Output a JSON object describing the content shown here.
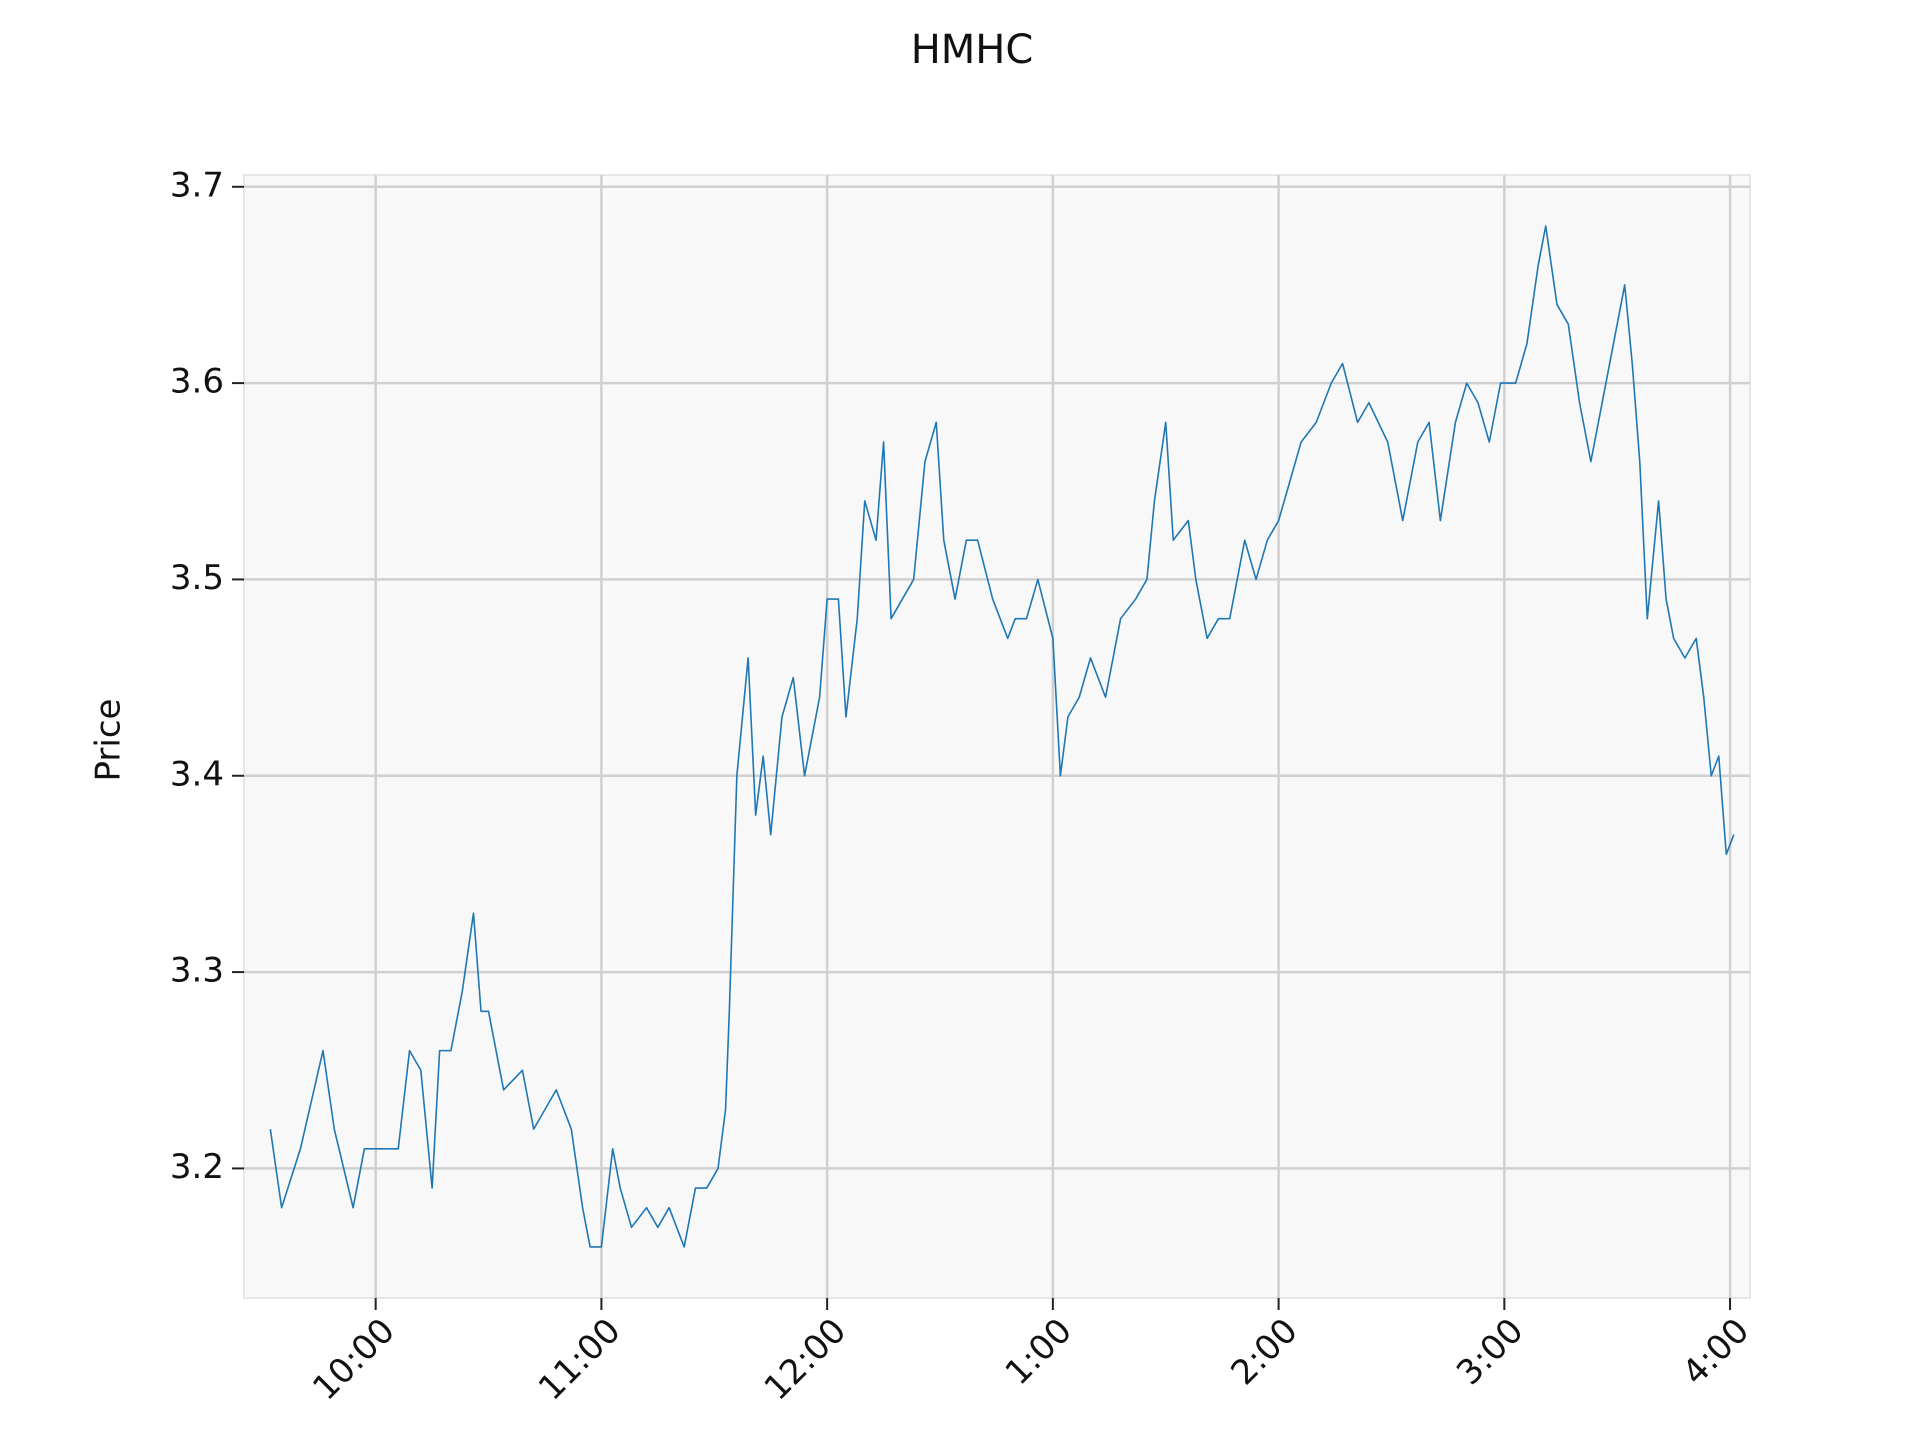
{
  "chart_data": {
    "type": "line",
    "title": "HMHC",
    "y_label": "Price",
    "xlim": [
      565,
      965.3
    ],
    "ylim": [
      3.134,
      3.706
    ],
    "xticks": [
      {
        "value": 600,
        "label": "10:00"
      },
      {
        "value": 660,
        "label": "11:00"
      },
      {
        "value": 720,
        "label": "12:00"
      },
      {
        "value": 780,
        "label": "1:00"
      },
      {
        "value": 840,
        "label": "2:00"
      },
      {
        "value": 900,
        "label": "3:00"
      },
      {
        "value": 960,
        "label": "4:00"
      }
    ],
    "yticks": [
      3.2,
      3.3,
      3.4,
      3.5,
      3.6,
      3.7
    ],
    "grid": true,
    "series": [
      {
        "color": "#1f77b4",
        "x": [
          572,
          575,
          580,
          586,
          589,
          594,
          597,
          601,
          606,
          609,
          612,
          615,
          617,
          620,
          623,
          626,
          628,
          630,
          634,
          639,
          642,
          645,
          648,
          652,
          655,
          657,
          660,
          663,
          665,
          668,
          672,
          675,
          678,
          682,
          685,
          688,
          691,
          693,
          694,
          696,
          699,
          701,
          703,
          705,
          708,
          711,
          714,
          718,
          720,
          723,
          725,
          728,
          730,
          733,
          735,
          737,
          740,
          743,
          746,
          749,
          751,
          754,
          757,
          760,
          764,
          768,
          770,
          773,
          776,
          780,
          782,
          784,
          787,
          790,
          794,
          798,
          802,
          805,
          807,
          810,
          812,
          816,
          818,
          821,
          824,
          827,
          831,
          834,
          837,
          840,
          843,
          846,
          850,
          854,
          857,
          861,
          864,
          869,
          873,
          877,
          880,
          883,
          887,
          890,
          893,
          896,
          899,
          903,
          906,
          909,
          911,
          914,
          917,
          920,
          923,
          926,
          929,
          932,
          934,
          936,
          938,
          941,
          943,
          945,
          948,
          951,
          953,
          955,
          957,
          959,
          961
        ],
        "values": [
          3.22,
          3.18,
          3.21,
          3.26,
          3.22,
          3.18,
          3.21,
          3.21,
          3.21,
          3.26,
          3.25,
          3.19,
          3.26,
          3.26,
          3.29,
          3.33,
          3.28,
          3.28,
          3.24,
          3.25,
          3.22,
          3.23,
          3.24,
          3.22,
          3.18,
          3.16,
          3.16,
          3.21,
          3.19,
          3.17,
          3.18,
          3.17,
          3.18,
          3.16,
          3.19,
          3.19,
          3.2,
          3.23,
          3.28,
          3.4,
          3.46,
          3.38,
          3.41,
          3.37,
          3.43,
          3.45,
          3.4,
          3.44,
          3.49,
          3.49,
          3.43,
          3.48,
          3.54,
          3.52,
          3.57,
          3.48,
          3.49,
          3.5,
          3.56,
          3.58,
          3.52,
          3.49,
          3.52,
          3.52,
          3.49,
          3.47,
          3.48,
          3.48,
          3.5,
          3.47,
          3.4,
          3.43,
          3.44,
          3.46,
          3.44,
          3.48,
          3.49,
          3.5,
          3.54,
          3.58,
          3.52,
          3.53,
          3.5,
          3.47,
          3.48,
          3.48,
          3.52,
          3.5,
          3.52,
          3.53,
          3.55,
          3.57,
          3.58,
          3.6,
          3.61,
          3.58,
          3.59,
          3.57,
          3.53,
          3.57,
          3.58,
          3.53,
          3.58,
          3.6,
          3.59,
          3.57,
          3.6,
          3.6,
          3.62,
          3.66,
          3.68,
          3.64,
          3.63,
          3.59,
          3.56,
          3.59,
          3.62,
          3.65,
          3.61,
          3.56,
          3.48,
          3.54,
          3.49,
          3.47,
          3.46,
          3.47,
          3.44,
          3.4,
          3.41,
          3.36,
          3.37
        ]
      }
    ]
  }
}
